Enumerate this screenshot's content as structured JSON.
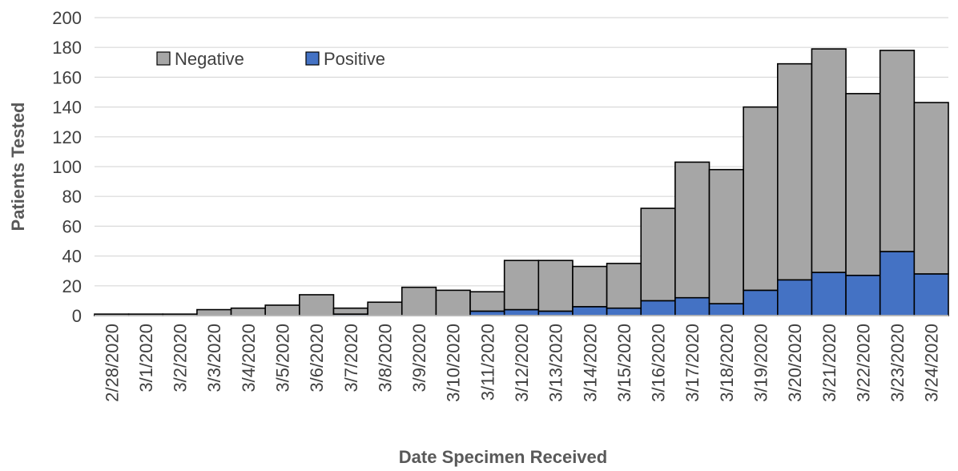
{
  "chart_data": {
    "type": "bar",
    "stacked": true,
    "title": "",
    "xlabel": "Date Specimen Received",
    "ylabel": "Patients Tested",
    "ylim": [
      0,
      200
    ],
    "yticks": [
      0,
      20,
      40,
      60,
      80,
      100,
      120,
      140,
      160,
      180,
      200
    ],
    "grid": true,
    "legend_position": "top-left",
    "categories": [
      "2/28/2020",
      "3/1/2020",
      "3/2/2020",
      "3/3/2020",
      "3/4/2020",
      "3/5/2020",
      "3/6/2020",
      "3/7/2020",
      "3/8/2020",
      "3/9/2020",
      "3/10/2020",
      "3/11/2020",
      "3/12/2020",
      "3/13/2020",
      "3/14/2020",
      "3/15/2020",
      "3/16/2020",
      "3/17/2020",
      "3/18/2020",
      "3/19/2020",
      "3/20/2020",
      "3/21/2020",
      "3/22/2020",
      "3/23/2020",
      "3/24/2020"
    ],
    "series": [
      {
        "name": "Positive",
        "color": "#4472C4",
        "values": [
          0,
          0,
          0,
          0,
          0,
          0,
          0,
          1,
          0,
          0,
          0,
          3,
          4,
          3,
          6,
          5,
          10,
          12,
          8,
          17,
          24,
          29,
          27,
          43,
          28
        ]
      },
      {
        "name": "Negative",
        "color": "#A6A6A6",
        "values": [
          1,
          1,
          1,
          4,
          5,
          7,
          14,
          4,
          9,
          19,
          17,
          13,
          33,
          34,
          27,
          30,
          62,
          91,
          90,
          123,
          145,
          150,
          122,
          135,
          115
        ]
      }
    ]
  }
}
